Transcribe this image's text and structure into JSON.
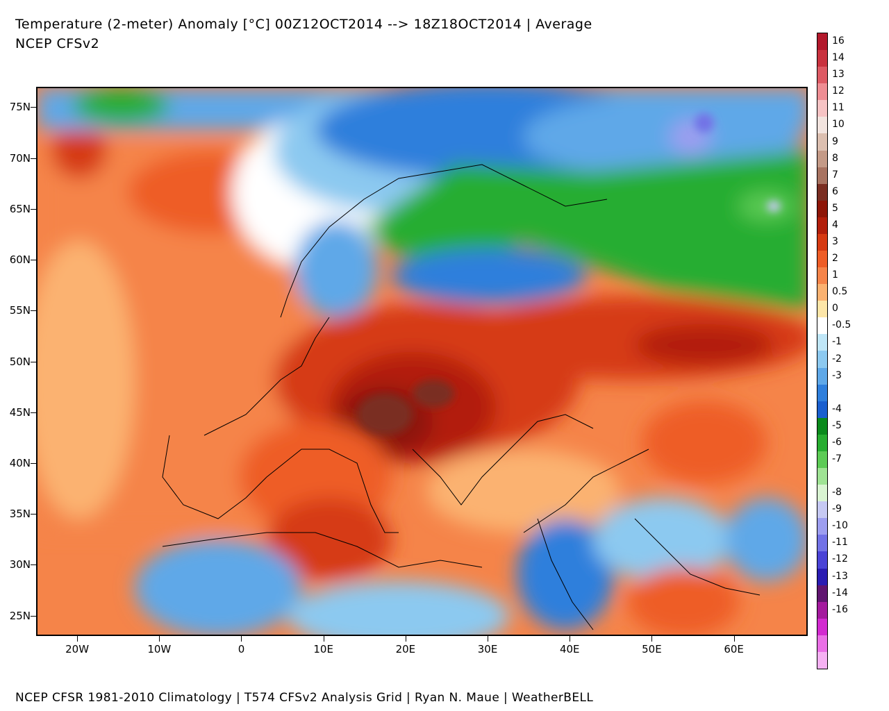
{
  "header": {
    "title": "Temperature (2-meter) Anomaly  [°C] 00Z12OCT2014 --> 18Z18OCT2014 | Average",
    "subtitle": "NCEP CFSv2"
  },
  "footer": "NCEP CFSR 1981-2010 Climatology | T574 CFSv2 Analysis Grid | Ryan N. Maue | WeatherBELL",
  "map": {
    "lon_range": [
      -25,
      69
    ],
    "lat_range": [
      23,
      77
    ],
    "lat_labels": [
      {
        "lat": 75,
        "text": "75N"
      },
      {
        "lat": 70,
        "text": "70N"
      },
      {
        "lat": 65,
        "text": "65N"
      },
      {
        "lat": 60,
        "text": "60N"
      },
      {
        "lat": 55,
        "text": "55N"
      },
      {
        "lat": 50,
        "text": "50N"
      },
      {
        "lat": 45,
        "text": "45N"
      },
      {
        "lat": 40,
        "text": "40N"
      },
      {
        "lat": 35,
        "text": "35N"
      },
      {
        "lat": 30,
        "text": "30N"
      },
      {
        "lat": 25,
        "text": "25N"
      }
    ],
    "lon_labels": [
      {
        "lon": -20,
        "text": "20W"
      },
      {
        "lon": -10,
        "text": "10W"
      },
      {
        "lon": 0,
        "text": "0"
      },
      {
        "lon": 10,
        "text": "10E"
      },
      {
        "lon": 20,
        "text": "20E"
      },
      {
        "lon": 30,
        "text": "30E"
      },
      {
        "lon": 40,
        "text": "40E"
      },
      {
        "lon": 50,
        "text": "50E"
      },
      {
        "lon": 60,
        "text": "60E"
      }
    ]
  },
  "colorbar": {
    "bins": [
      {
        "label": "16",
        "color": "#b2182b"
      },
      {
        "label": "14",
        "color": "#c9323f"
      },
      {
        "label": "13",
        "color": "#dd5a64"
      },
      {
        "label": "12",
        "color": "#ee8d93"
      },
      {
        "label": "11",
        "color": "#f6c3c4"
      },
      {
        "label": "10",
        "color": "#f2e4df"
      },
      {
        "label": "9",
        "color": "#dcbfb0"
      },
      {
        "label": "8",
        "color": "#c49a87"
      },
      {
        "label": "7",
        "color": "#a87361"
      },
      {
        "label": "6",
        "color": "#7a2e22"
      },
      {
        "label": "5",
        "color": "#8e1608"
      },
      {
        "label": "4",
        "color": "#b21f0b"
      },
      {
        "label": "3",
        "color": "#d63a12"
      },
      {
        "label": "2",
        "color": "#ee5d26"
      },
      {
        "label": "1",
        "color": "#f58449"
      },
      {
        "label": "0.5",
        "color": "#fbb271"
      },
      {
        "label": "0",
        "color": "#fde6a8"
      },
      {
        "label": "-0.5",
        "color": "#ffffff"
      },
      {
        "label": "-1",
        "color": "#bfe6f7"
      },
      {
        "label": "-2",
        "color": "#8cc9f0"
      },
      {
        "label": "-3",
        "color": "#5ea8e8"
      },
      {
        "label": "",
        "color": "#2e7fdc"
      },
      {
        "label": "-4",
        "color": "#1a5fcf"
      },
      {
        "label": "-5",
        "color": "#0a8a1c"
      },
      {
        "label": "-6",
        "color": "#27ad30"
      },
      {
        "label": "-7",
        "color": "#5ccb55"
      },
      {
        "label": "",
        "color": "#9fe394"
      },
      {
        "label": "-8",
        "color": "#d9f4d2"
      },
      {
        "label": "-9",
        "color": "#c6c9f3"
      },
      {
        "label": "-10",
        "color": "#9d9ef0"
      },
      {
        "label": "-11",
        "color": "#7272e6"
      },
      {
        "label": "-12",
        "color": "#4a43d6"
      },
      {
        "label": "-13",
        "color": "#2a1cb2"
      },
      {
        "label": "-14",
        "color": "#601570"
      },
      {
        "label": "-16",
        "color": "#a41a9e"
      },
      {
        "label": "",
        "color": "#d22ad0"
      },
      {
        "label": "",
        "color": "#ea6fe6"
      },
      {
        "label": "",
        "color": "#f6b1f3"
      }
    ]
  }
}
